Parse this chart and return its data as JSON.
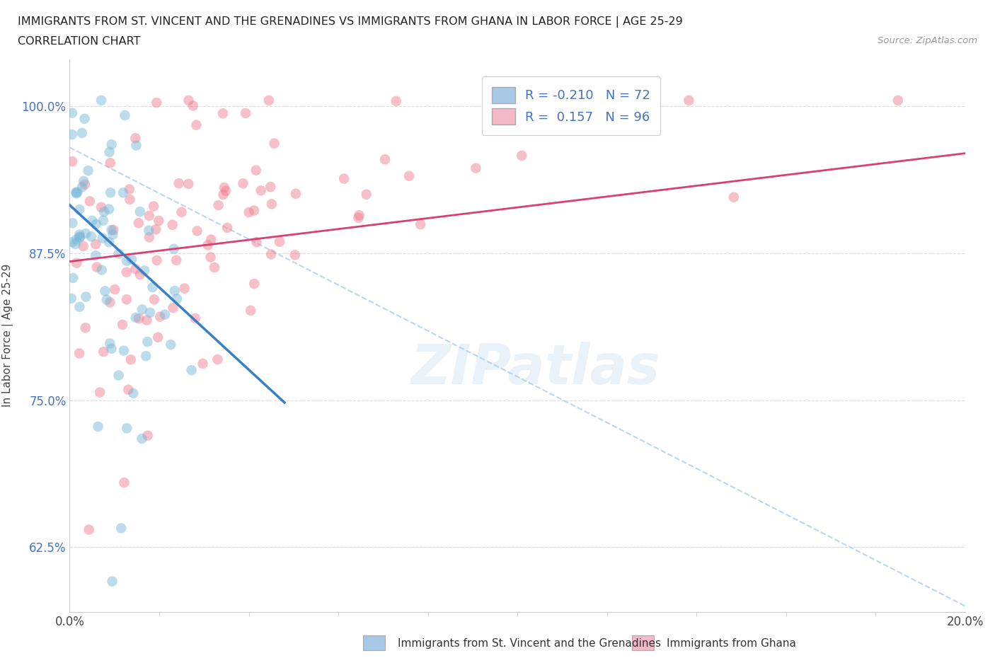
{
  "title_line1": "IMMIGRANTS FROM ST. VINCENT AND THE GRENADINES VS IMMIGRANTS FROM GHANA IN LABOR FORCE | AGE 25-29",
  "title_line2": "CORRELATION CHART",
  "source_text": "Source: ZipAtlas.com",
  "ylabel": "In Labor Force | Age 25-29",
  "xlim": [
    0.0,
    0.2
  ],
  "ylim": [
    0.57,
    1.04
  ],
  "ytick_positions": [
    0.625,
    0.75,
    0.875,
    1.0
  ],
  "ytick_labels": [
    "62.5%",
    "75.0%",
    "87.5%",
    "100.0%"
  ],
  "color_blue": "#7ab8d9",
  "color_pink": "#f08090",
  "color_blue_legend": "#a8c8e8",
  "color_pink_legend": "#f4b8c8",
  "legend_label_blue": "R = -0.210   N = 72",
  "legend_label_pink": "R =  0.157   N = 96",
  "legend_text_color": "#4472c4",
  "bottom_label_blue": "Immigrants from St. Vincent and the Grenadines",
  "bottom_label_pink": "Immigrants from Ghana",
  "watermark": "ZIPatlas",
  "background_color": "#ffffff",
  "grid_color": "#d8d8d8",
  "n_blue": 72,
  "n_pink": 96,
  "seed_blue": 42,
  "seed_pink": 123,
  "xtick_positions": [
    0.0,
    0.2
  ],
  "xtick_labels": [
    "0.0%",
    "20.0%"
  ]
}
